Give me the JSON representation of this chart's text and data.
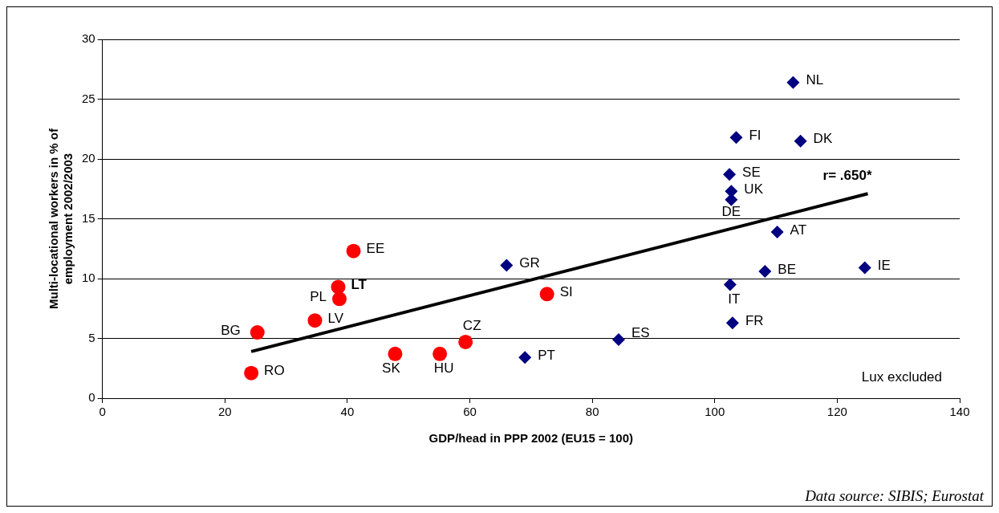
{
  "chart_data": {
    "type": "scatter",
    "xlabel": "GDP/head in PPP 2002 (EU15 = 100)",
    "ylabel": "Multi-locational workers in % of employment 2002/2003",
    "xlim": [
      0,
      140
    ],
    "xticks": [
      0,
      20,
      40,
      60,
      80,
      100,
      120,
      140
    ],
    "ylim": [
      0,
      30
    ],
    "yticks": [
      0,
      5,
      10,
      15,
      20,
      25,
      30
    ],
    "grid": "y",
    "legend": false,
    "series": [
      {
        "type": "scatter",
        "marker": "circle",
        "color": "#ff0000",
        "x": [
          24.3,
          25.3,
          34.7,
          38.7,
          38.5,
          41.0,
          47.8,
          55.1,
          59.3,
          72.6
        ],
        "values": [
          2.1,
          5.5,
          6.5,
          8.3,
          9.3,
          12.3,
          3.7,
          3.7,
          4.7,
          8.7
        ]
      },
      {
        "type": "scatter",
        "marker": "diamond",
        "color": "#000080",
        "x": [
          66.0,
          69.0,
          84.3,
          112.8,
          103.5,
          114.0,
          102.4,
          102.7,
          102.7,
          110.2,
          108.2,
          124.5,
          102.5,
          102.9
        ],
        "values": [
          11.1,
          3.4,
          4.9,
          26.4,
          21.8,
          21.5,
          18.7,
          17.3,
          16.6,
          13.9,
          10.6,
          10.9,
          9.5,
          6.3
        ]
      },
      {
        "type": "line",
        "marker": "none",
        "color": "#000000",
        "x": [
          24.3,
          125.0
        ],
        "values": [
          3.9,
          17.1
        ]
      }
    ],
    "annotations": [
      {
        "text": "RO",
        "x": 24.3,
        "y": 2.1
      },
      {
        "text": "BG",
        "x": 25.3,
        "y": 5.5
      },
      {
        "text": "LV",
        "x": 34.7,
        "y": 6.5
      },
      {
        "text": "PL",
        "x": 38.7,
        "y": 8.3
      },
      {
        "text": "LT",
        "x": 38.5,
        "y": 9.3
      },
      {
        "text": "EE",
        "x": 41.0,
        "y": 12.3
      },
      {
        "text": "SK",
        "x": 47.8,
        "y": 3.7
      },
      {
        "text": "HU",
        "x": 55.1,
        "y": 3.7
      },
      {
        "text": "CZ",
        "x": 59.3,
        "y": 4.7
      },
      {
        "text": "SI",
        "x": 72.6,
        "y": 8.7
      },
      {
        "text": "GR",
        "x": 66.0,
        "y": 11.1
      },
      {
        "text": "PT",
        "x": 69.0,
        "y": 3.4
      },
      {
        "text": "ES",
        "x": 84.3,
        "y": 4.9
      },
      {
        "text": "NL",
        "x": 112.8,
        "y": 26.4
      },
      {
        "text": "FI",
        "x": 103.5,
        "y": 21.8
      },
      {
        "text": "DK",
        "x": 114.0,
        "y": 21.5
      },
      {
        "text": "SE",
        "x": 102.4,
        "y": 18.7
      },
      {
        "text": "UK",
        "x": 102.7,
        "y": 17.3
      },
      {
        "text": "DE",
        "x": 102.7,
        "y": 16.6
      },
      {
        "text": "AT",
        "x": 110.2,
        "y": 13.9
      },
      {
        "text": "BE",
        "x": 108.2,
        "y": 10.6
      },
      {
        "text": "IE",
        "x": 124.5,
        "y": 10.9
      },
      {
        "text": "IT",
        "x": 102.5,
        "y": 9.5
      },
      {
        "text": "FR",
        "x": 102.9,
        "y": 6.3
      },
      {
        "text": "r= .650*",
        "x": 125.0,
        "y": 17.1
      },
      "Lux excluded",
      "Data source: SIBIS; Eurostat"
    ]
  }
}
